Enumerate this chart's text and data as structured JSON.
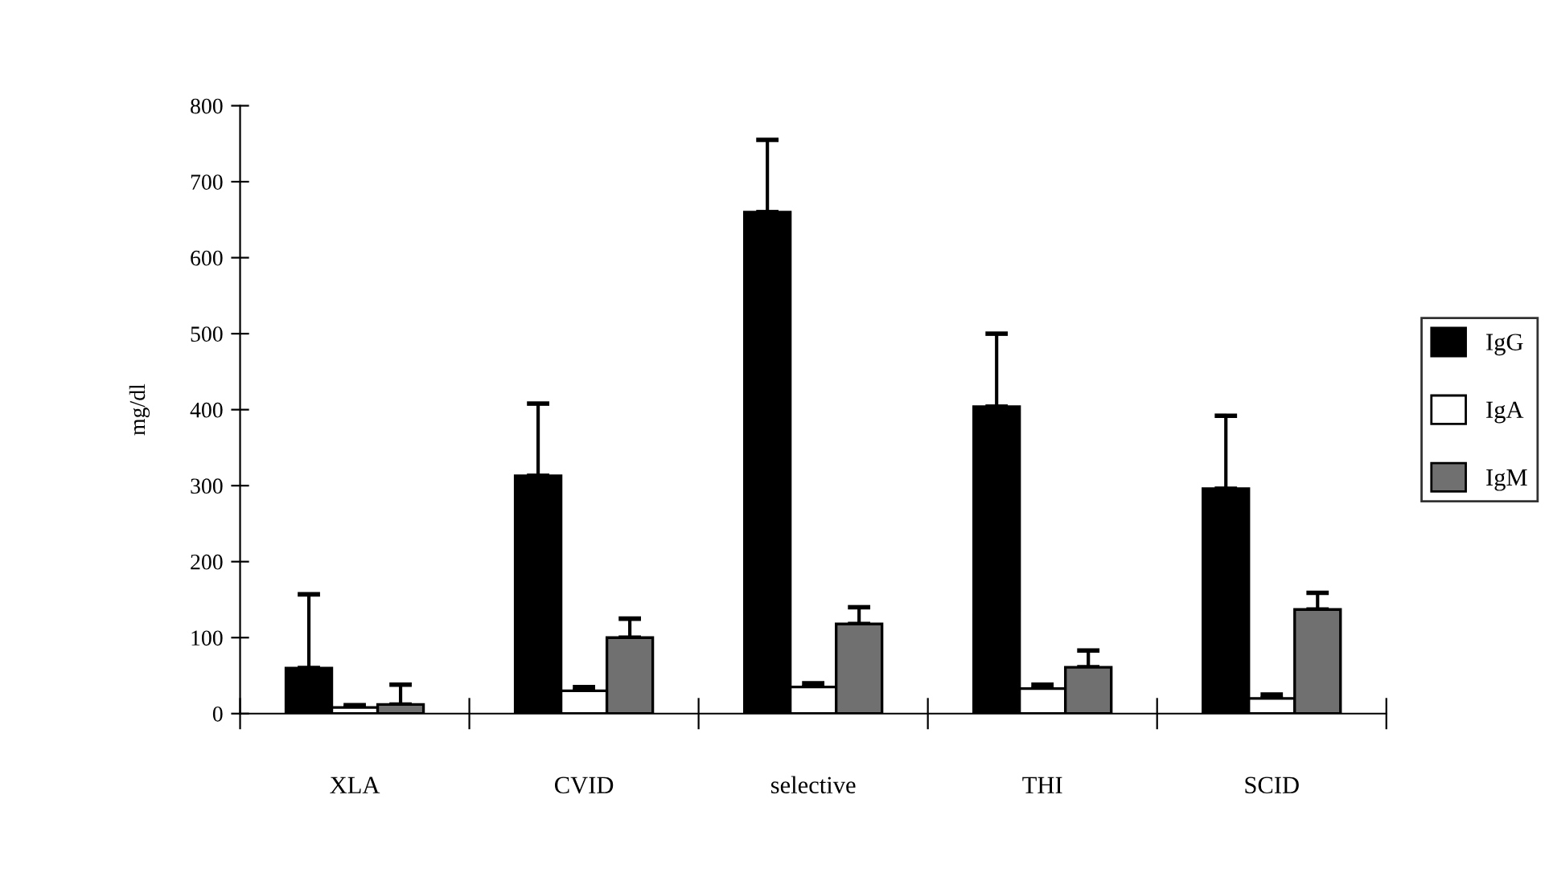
{
  "chart_data": {
    "type": "bar",
    "ylabel": "mg/dl",
    "categories": [
      "XLA",
      "CVID",
      "selective",
      "THI",
      "SCID"
    ],
    "ylim": [
      0,
      800
    ],
    "yticks": [
      0,
      100,
      200,
      300,
      400,
      500,
      600,
      700,
      800
    ],
    "grid": false,
    "legend": "right",
    "series": [
      {
        "name": "IgG",
        "color": "#000000",
        "values": [
          60,
          313,
          660,
          404,
          296
        ],
        "errors": [
          [
            60,
            157
          ],
          [
            313,
            408
          ],
          [
            660,
            755
          ],
          [
            404,
            500
          ],
          [
            296,
            392
          ]
        ]
      },
      {
        "name": "IgA",
        "color": "#ffffff",
        "values": [
          8,
          30,
          35,
          33,
          20
        ],
        "errors": [
          [
            8,
            11
          ],
          [
            30,
            35
          ],
          [
            35,
            40
          ],
          [
            33,
            38
          ],
          [
            20,
            25
          ]
        ]
      },
      {
        "name": "IgM",
        "color": "#707070",
        "values": [
          12,
          100,
          118,
          61,
          137
        ],
        "errors": [
          [
            12,
            38
          ],
          [
            100,
            125
          ],
          [
            118,
            140
          ],
          [
            61,
            83
          ],
          [
            137,
            159
          ]
        ]
      }
    ]
  }
}
